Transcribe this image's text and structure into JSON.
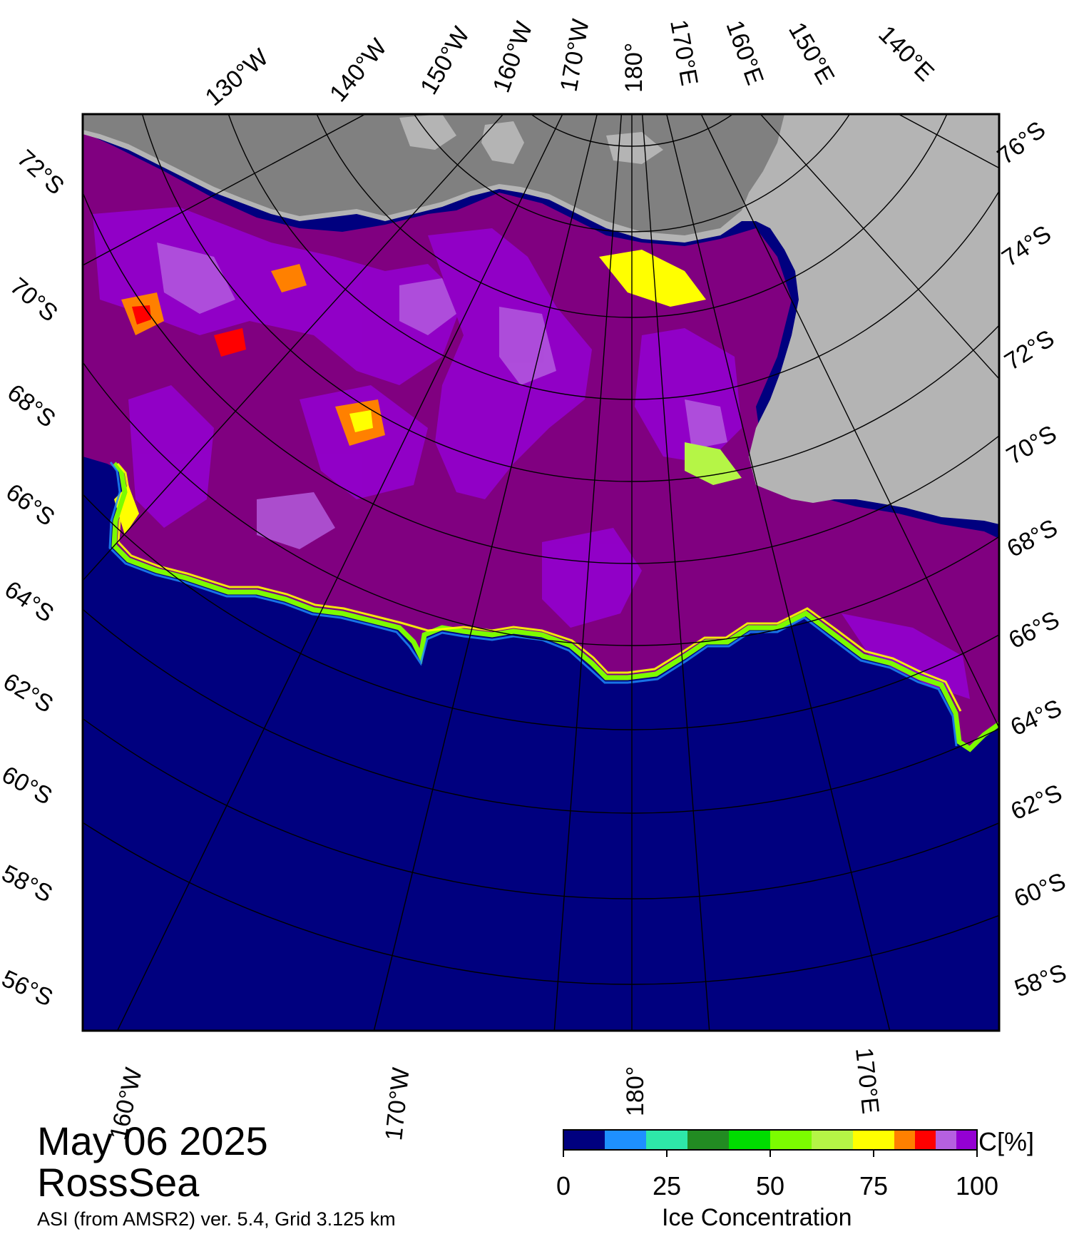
{
  "date": "May 06 2025",
  "region": "RossSea",
  "product": "ASI (from AMSR2) ver. 5.4,  Grid 3.125 km",
  "colorbar": {
    "title": "Ice Concentration",
    "unit": "C[%]",
    "ticks": [
      "0",
      "25",
      "50",
      "75",
      "100"
    ],
    "bins": [
      {
        "from": 0,
        "to": 10,
        "color": "#00007f"
      },
      {
        "from": 10,
        "to": 20,
        "color": "#1e90ff"
      },
      {
        "from": 20,
        "to": 30,
        "color": "#2ee8a8"
      },
      {
        "from": 30,
        "to": 40,
        "color": "#228b22"
      },
      {
        "from": 40,
        "to": 50,
        "color": "#00dc00"
      },
      {
        "from": 50,
        "to": 60,
        "color": "#7cfc00"
      },
      {
        "from": 60,
        "to": 70,
        "color": "#b5f546"
      },
      {
        "from": 70,
        "to": 75,
        "color": "#ffff00"
      },
      {
        "from": 75,
        "to": 80,
        "color": "#ffff00"
      },
      {
        "from": 80,
        "to": 85,
        "color": "#ff8000"
      },
      {
        "from": 85,
        "to": 90,
        "color": "#ff0000"
      },
      {
        "from": 90,
        "to": 95,
        "color": "#b560e0"
      },
      {
        "from": 95,
        "to": 100,
        "color": "#9400d3"
      }
    ]
  },
  "colors": {
    "ocean": "#00007f",
    "land": "#b4b4b4",
    "ice_shelf": "#808080",
    "dense_ice": "#800080",
    "pack_ice": "#9400d3",
    "medium_ice": "#b560e0"
  },
  "graticule": {
    "top_longitudes": [
      "130°W",
      "140°W",
      "150°W",
      "160°W",
      "170°W",
      "180°",
      "170°E",
      "160°E",
      "150°E",
      "140°E"
    ],
    "bottom_longitudes": [
      "160°W",
      "170°W",
      "180°",
      "170°E"
    ],
    "left_latitudes": [
      "72°S",
      "70°S",
      "68°S",
      "66°S",
      "64°S",
      "62°S",
      "60°S",
      "58°S",
      "56°S"
    ],
    "right_latitudes": [
      "76°S",
      "74°S",
      "72°S",
      "70°S",
      "68°S",
      "66°S",
      "64°S",
      "62°S",
      "60°S",
      "58°S"
    ]
  }
}
